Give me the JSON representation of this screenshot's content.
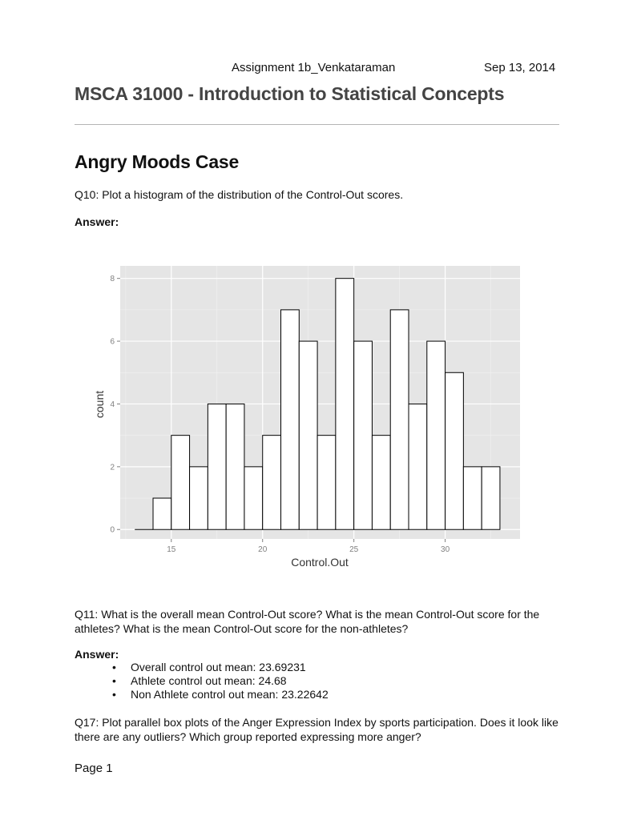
{
  "header": {
    "assignment": "Assignment 1b_Venkataraman",
    "date": "Sep 13, 2014"
  },
  "course_title": "MSCA 31000 - Introduction to Statistical Concepts",
  "section_title": "Angry Moods Case",
  "q10": {
    "question": "Q10: Plot a histogram of the distribution of the Control-Out scores.",
    "answer_label": "Answer:"
  },
  "chart_data": {
    "type": "bar",
    "title": "",
    "xlabel": "Control.Out",
    "ylabel": "count",
    "x_ticks": [
      "15",
      "20",
      "25",
      "30"
    ],
    "y_ticks": [
      "0",
      "2",
      "4",
      "6",
      "8"
    ],
    "xlim": [
      12.2,
      34.1
    ],
    "ylim": [
      -0.3,
      8.4
    ],
    "bins": [
      {
        "x0": 13,
        "x1": 14,
        "count": 0
      },
      {
        "x0": 14,
        "x1": 15,
        "count": 1
      },
      {
        "x0": 15,
        "x1": 16,
        "count": 3
      },
      {
        "x0": 16,
        "x1": 17,
        "count": 2
      },
      {
        "x0": 17,
        "x1": 18,
        "count": 4
      },
      {
        "x0": 18,
        "x1": 19,
        "count": 4
      },
      {
        "x0": 19,
        "x1": 20,
        "count": 2
      },
      {
        "x0": 20,
        "x1": 21,
        "count": 3
      },
      {
        "x0": 21,
        "x1": 22,
        "count": 7
      },
      {
        "x0": 22,
        "x1": 23,
        "count": 6
      },
      {
        "x0": 23,
        "x1": 24,
        "count": 3
      },
      {
        "x0": 24,
        "x1": 25,
        "count": 8
      },
      {
        "x0": 25,
        "x1": 26,
        "count": 6
      },
      {
        "x0": 26,
        "x1": 27,
        "count": 3
      },
      {
        "x0": 27,
        "x1": 28,
        "count": 7
      },
      {
        "x0": 28,
        "x1": 29,
        "count": 4
      },
      {
        "x0": 29,
        "x1": 30,
        "count": 6
      },
      {
        "x0": 30,
        "x1": 31,
        "count": 5
      },
      {
        "x0": 31,
        "x1": 32,
        "count": 2
      },
      {
        "x0": 32,
        "x1": 33,
        "count": 2
      }
    ],
    "grid": true,
    "background": "#e5e5e5",
    "bar_fill": "#ffffff",
    "bar_stroke": "#000000"
  },
  "q11": {
    "question": "Q11: What is the overall mean Control-Out score? What is the mean Control-Out score for the athletes? What is the mean Control-Out score for the non-athletes?",
    "answer_label": "Answer:",
    "bullet_symbol": "•",
    "items": [
      "Overall control out mean: 23.69231",
      "Athlete control out mean: 24.68",
      "Non Athlete control out mean: 23.22642"
    ]
  },
  "q17": {
    "question": "Q17: Plot parallel box plots of the Anger Expression Index by sports participation. Does it look like there are any outliers? Which group reported expressing more anger?"
  },
  "footer": {
    "page_label": "Page 1"
  }
}
